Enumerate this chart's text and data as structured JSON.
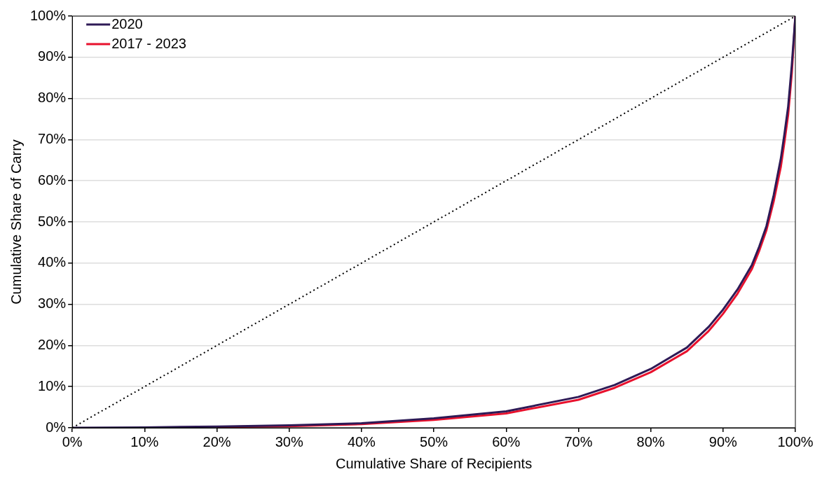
{
  "chart_data": {
    "type": "line",
    "xlabel": "Cumulative Share of Recipients",
    "ylabel": "Cumulative Share of Carry",
    "xlim": [
      0,
      100
    ],
    "ylim": [
      0,
      100
    ],
    "xticks": [
      {
        "value": 0,
        "label": "0%"
      },
      {
        "value": 10,
        "label": "10%"
      },
      {
        "value": 20,
        "label": "20%"
      },
      {
        "value": 30,
        "label": "30%"
      },
      {
        "value": 40,
        "label": "40%"
      },
      {
        "value": 50,
        "label": "50%"
      },
      {
        "value": 60,
        "label": "60%"
      },
      {
        "value": 70,
        "label": "70%"
      },
      {
        "value": 80,
        "label": "80%"
      },
      {
        "value": 90,
        "label": "90%"
      },
      {
        "value": 100,
        "label": "100%"
      }
    ],
    "yticks": [
      {
        "value": 0,
        "label": "0%"
      },
      {
        "value": 10,
        "label": "10%"
      },
      {
        "value": 20,
        "label": "20%"
      },
      {
        "value": 30,
        "label": "30%"
      },
      {
        "value": 40,
        "label": "40%"
      },
      {
        "value": 50,
        "label": "50%"
      },
      {
        "value": 60,
        "label": "60%"
      },
      {
        "value": 70,
        "label": "70%"
      },
      {
        "value": 80,
        "label": "80%"
      },
      {
        "value": 90,
        "label": "90%"
      },
      {
        "value": 100,
        "label": "100%"
      }
    ],
    "grid": "y",
    "legend": "top left",
    "marker": "none",
    "series": [
      {
        "color": "#000000",
        "line_style": "dotted",
        "x": [
          0,
          100
        ],
        "values": [
          0,
          100
        ]
      },
      {
        "name": "2020",
        "color": "#2e1a56",
        "line_style": "solid",
        "x": [
          0,
          10,
          20,
          30,
          40,
          50,
          60,
          70,
          75,
          80,
          85,
          88,
          90,
          92,
          94,
          95,
          96,
          97,
          98,
          98.5,
          99,
          99.5,
          100
        ],
        "values": [
          0,
          0.1,
          0.3,
          0.6,
          1.1,
          2.3,
          4.0,
          7.5,
          10.4,
          14.3,
          19.5,
          24.5,
          28.7,
          33.6,
          39.6,
          44.0,
          49.0,
          56.5,
          65.5,
          71.5,
          78,
          88,
          100
        ]
      },
      {
        "name": "2017 - 2023",
        "color": "#e8112d",
        "line_style": "solid",
        "x": [
          20,
          30,
          40,
          50,
          60,
          70,
          75,
          80,
          85,
          88,
          90,
          92,
          94,
          95,
          96,
          97,
          98,
          98.5,
          99,
          99.5,
          100
        ],
        "values": [
          0.2,
          0.4,
          0.9,
          1.9,
          3.5,
          6.8,
          9.7,
          13.5,
          18.6,
          23.5,
          27.7,
          32.6,
          38.6,
          43.0,
          48.0,
          55.0,
          63.5,
          69.5,
          76,
          86,
          100
        ]
      }
    ]
  }
}
